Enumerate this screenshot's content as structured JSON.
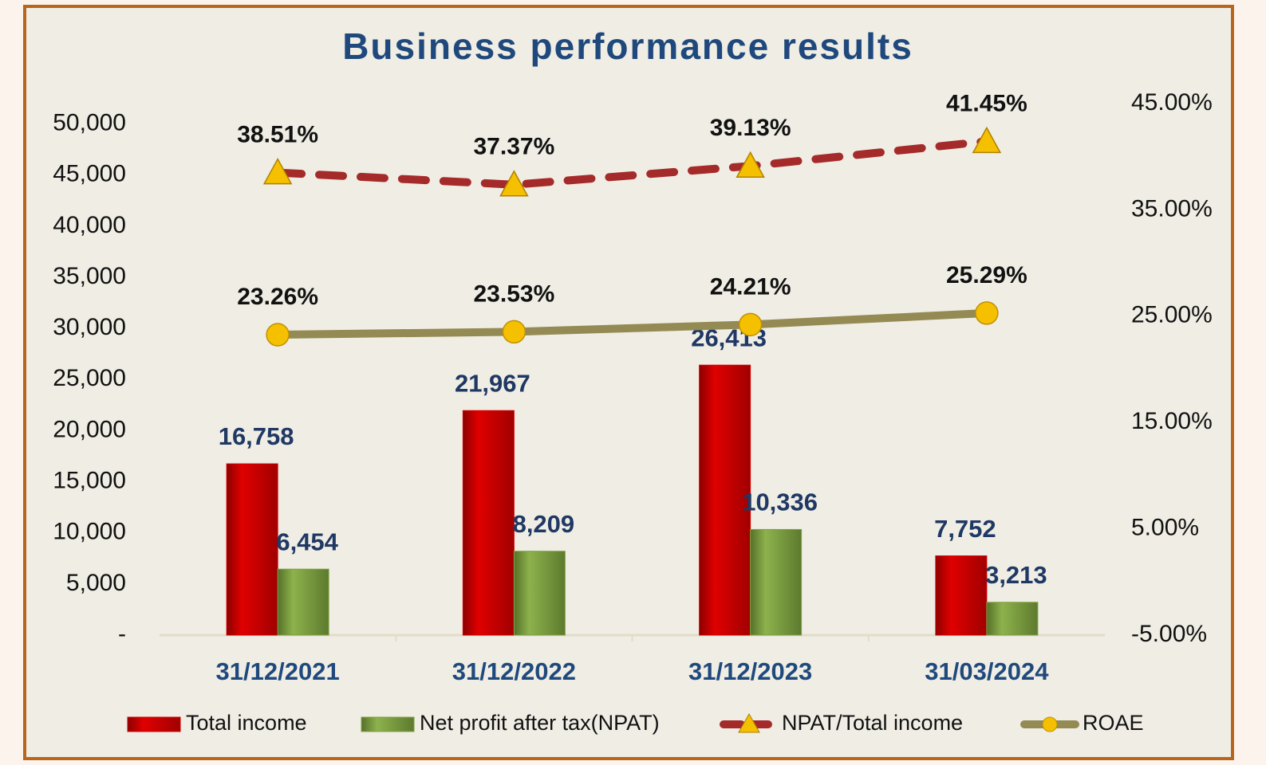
{
  "chart_data": {
    "type": "combo",
    "title": "Business performance results",
    "categories": [
      "31/12/2021",
      "31/12/2022",
      "31/12/2023",
      "31/03/2024"
    ],
    "ylim": [
      0,
      52000
    ],
    "yticks": [
      {
        "value": 0,
        "label": "-"
      },
      {
        "value": 5000,
        "label": "5,000"
      },
      {
        "value": 10000,
        "label": "10,000"
      },
      {
        "value": 15000,
        "label": "15,000"
      },
      {
        "value": 20000,
        "label": "20,000"
      },
      {
        "value": 25000,
        "label": "25,000"
      },
      {
        "value": 30000,
        "label": "30,000"
      },
      {
        "value": 35000,
        "label": "35,000"
      },
      {
        "value": 40000,
        "label": "40,000"
      },
      {
        "value": 45000,
        "label": "45,000"
      },
      {
        "value": 50000,
        "label": "50,000"
      }
    ],
    "y2lim": [
      -5,
      45
    ],
    "y2ticks": [
      {
        "value": -5,
        "label": "-5.00%"
      },
      {
        "value": 5,
        "label": "5.00%"
      },
      {
        "value": 15,
        "label": "15.00%"
      },
      {
        "value": 25,
        "label": "25.00%"
      },
      {
        "value": 35,
        "label": "35.00%"
      },
      {
        "value": 45,
        "label": "45.00%"
      }
    ],
    "grid": false,
    "legend": "bottom",
    "series": [
      {
        "name": "Total income",
        "type": "bar",
        "color": "#d40000",
        "values": [
          16758,
          21967,
          26413,
          7752
        ],
        "value_labels": [
          "16,758",
          "21,967",
          "26,413",
          "7,752"
        ]
      },
      {
        "name": "Net profit after tax(NPAT)",
        "type": "bar",
        "color": "#7fa040",
        "values": [
          6454,
          8209,
          10336,
          3213
        ],
        "value_labels": [
          "6,454",
          "8,209",
          "10,336",
          "3,213"
        ]
      },
      {
        "name": "NPAT/Total income",
        "type": "line",
        "axis": "y2",
        "color": "#a52a2a",
        "line_style": "dashed",
        "marker": "triangle",
        "marker_color": "#f5c000",
        "values": [
          38.51,
          37.37,
          39.13,
          41.45
        ],
        "value_labels": [
          "38.51%",
          "37.37%",
          "39.13%",
          "41.45%"
        ]
      },
      {
        "name": "ROAE",
        "type": "line",
        "axis": "y2",
        "color": "#948a54",
        "line_style": "solid",
        "marker": "circle",
        "marker_color": "#f5c000",
        "values": [
          23.26,
          23.53,
          24.21,
          25.29
        ],
        "value_labels": [
          "23.26%",
          "23.53%",
          "24.21%",
          "25.29%"
        ]
      }
    ]
  }
}
